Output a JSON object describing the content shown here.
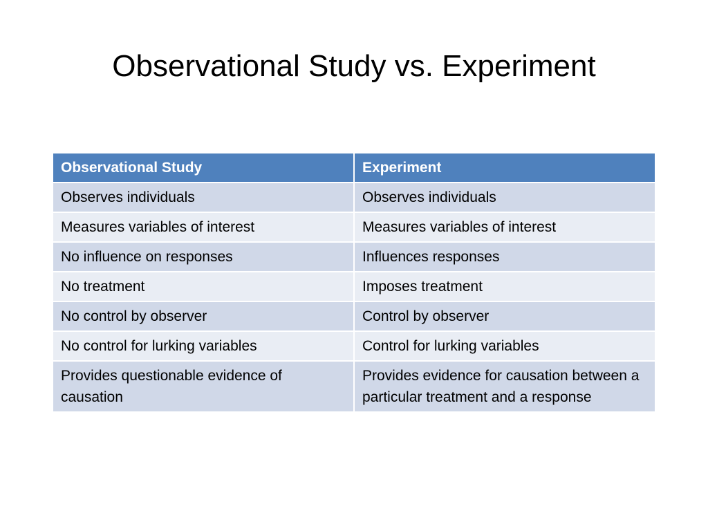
{
  "slide": {
    "title": "Observational Study vs. Experiment"
  },
  "table": {
    "headers": [
      "Observational Study",
      "Experiment"
    ],
    "rows": [
      [
        "Observes individuals",
        "Observes individuals"
      ],
      [
        "Measures variables of interest",
        "Measures variables of interest"
      ],
      [
        "No influence on responses",
        "Influences responses"
      ],
      [
        "No treatment",
        "Imposes treatment"
      ],
      [
        "No control by observer",
        "Control by observer"
      ],
      [
        "No control for lurking variables",
        "Control for lurking variables"
      ],
      [
        "Provides questionable evidence of causation",
        "Provides evidence for causation between a particular treatment and a response"
      ]
    ]
  },
  "colors": {
    "header_bg": "#4f81bd",
    "row_dark": "#d0d8e8",
    "row_light": "#e9edf4"
  }
}
